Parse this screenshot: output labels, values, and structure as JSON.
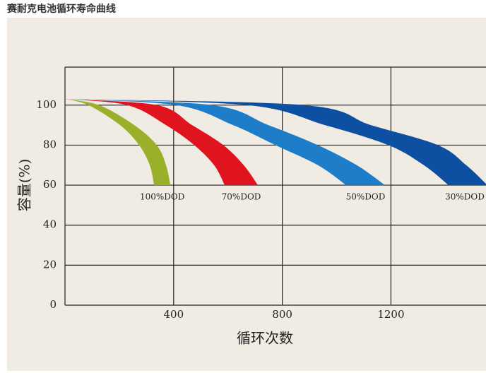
{
  "chart_data": {
    "type": "band",
    "title": "赛耐克电池循环寿命曲线",
    "x_label": "循环次数",
    "y_label": "容量(%)",
    "capacity": [
      103,
      100,
      90,
      80,
      70,
      60
    ],
    "series": [
      {
        "name": "100%DOD",
        "color": "#9bb02a",
        "cycles_low": [
          0,
          86,
          203,
          273,
          312,
          328
        ],
        "cycles_high": [
          0,
          125,
          255,
          338,
          372,
          388
        ]
      },
      {
        "name": "70%DOD",
        "color": "#e0141e",
        "cycles_low": [
          0,
          229,
          372,
          476,
          549,
          588
        ],
        "cycles_high": [
          0,
          338,
          468,
          583,
          658,
          710
        ]
      },
      {
        "name": "50%DOD",
        "color": "#1e7dc8",
        "cycles_low": [
          0,
          411,
          619,
          775,
          931,
          1035
        ],
        "cycles_high": [
          0,
          541,
          749,
          931,
          1074,
          1178
        ]
      },
      {
        "name": "30%DOD",
        "color": "#0d4fa0",
        "cycles_low": [
          0,
          671,
          957,
          1191,
          1321,
          1412
        ],
        "cycles_high": [
          0,
          879,
          1126,
          1373,
          1477,
          1555
        ]
      }
    ],
    "xlim": [
      0,
      1550
    ],
    "ylim": [
      0,
      119
    ],
    "xticks": [
      400,
      800,
      1200
    ],
    "yticks": [
      0,
      20,
      40,
      60,
      80,
      100
    ],
    "grid": true
  }
}
